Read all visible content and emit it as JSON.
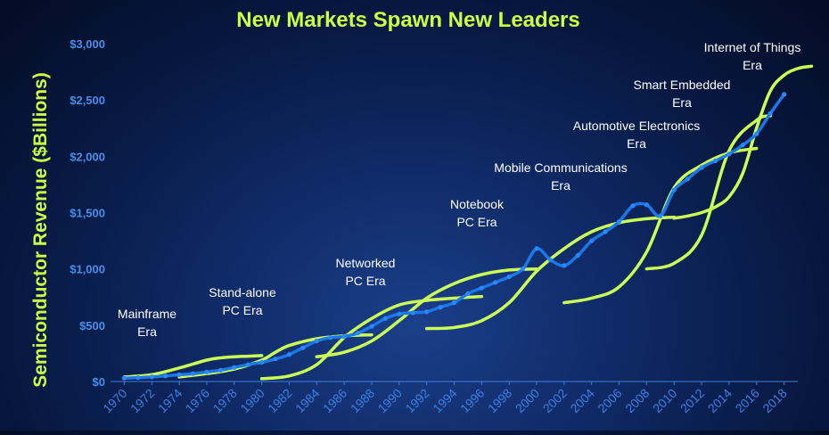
{
  "chart_data": {
    "type": "line",
    "title": "New Markets Spawn New Leaders",
    "ylabel": "Semiconductor Revenue ($Billions)",
    "xlabel": "",
    "xlim": [
      1969,
      2019
    ],
    "ylim": [
      0,
      3000
    ],
    "yticks": [
      {
        "value": 0,
        "label": "$0"
      },
      {
        "value": 500,
        "label": "$500"
      },
      {
        "value": 1000,
        "label": "$1,000"
      },
      {
        "value": 1500,
        "label": "$1,500"
      },
      {
        "value": 2000,
        "label": "$2,000"
      },
      {
        "value": 2500,
        "label": "$2,500"
      },
      {
        "value": 3000,
        "label": "$3,000"
      }
    ],
    "xticks": [
      "1970",
      "1972",
      "1974",
      "1976",
      "1978",
      "1980",
      "1982",
      "1984",
      "1986",
      "1988",
      "1990",
      "1992",
      "1994",
      "1996",
      "1998",
      "2000",
      "2002",
      "2004",
      "2006",
      "2008",
      "2010",
      "2012",
      "2014",
      "2016",
      "2018"
    ],
    "colors": {
      "revenue": "#1a78e8",
      "era_curves": "#ccff55",
      "title": "#ccff44"
    },
    "series": [
      {
        "type": "line",
        "x": [
          1970,
          1971,
          1972,
          1973,
          1974,
          1975,
          1976,
          1977,
          1978,
          1979,
          1980,
          1981,
          1982,
          1983,
          1984,
          1985,
          1986,
          1987,
          1988,
          1989,
          1990,
          1991,
          1992,
          1993,
          1994,
          1995,
          1996,
          1997,
          1998,
          1999,
          2000,
          2001,
          2002,
          2003,
          2004,
          2005,
          2006,
          2007,
          2008,
          2009,
          2010,
          2011,
          2012,
          2013,
          2014,
          2015,
          2016,
          2017,
          2018
        ],
        "values": [
          30,
          35,
          40,
          50,
          60,
          70,
          85,
          100,
          125,
          150,
          170,
          200,
          240,
          300,
          360,
          390,
          400,
          430,
          490,
          560,
          600,
          610,
          620,
          660,
          700,
          780,
          830,
          880,
          930,
          1000,
          1180,
          1080,
          1030,
          1120,
          1250,
          1330,
          1420,
          1560,
          1570,
          1470,
          1700,
          1800,
          1900,
          1960,
          2020,
          2100,
          2200,
          2380,
          2550
        ]
      }
    ],
    "eras": [
      {
        "label": [
          "Mainframe",
          "Era"
        ],
        "x": [
          1970,
          1972,
          1974,
          1976,
          1977,
          1978,
          1979,
          1980
        ],
        "values": [
          40,
          60,
          120,
          190,
          210,
          220,
          225,
          230
        ]
      },
      {
        "label": [
          "Stand-alone",
          "PC Era"
        ],
        "x": [
          1974,
          1976,
          1978,
          1980,
          1981,
          1982,
          1984,
          1986,
          1988
        ],
        "values": [
          40,
          70,
          110,
          190,
          260,
          320,
          380,
          405,
          415
        ]
      },
      {
        "label": [
          "Networked",
          "PC Era"
        ],
        "x": [
          1980,
          1982,
          1984,
          1986,
          1988,
          1990,
          1992,
          1994,
          1996
        ],
        "values": [
          25,
          50,
          150,
          390,
          560,
          680,
          720,
          740,
          755
        ]
      },
      {
        "label": [
          "Notebook",
          "PC Era"
        ],
        "x": [
          1984,
          1986,
          1988,
          1990,
          1992,
          1994,
          1996,
          1998,
          2000
        ],
        "values": [
          220,
          260,
          360,
          540,
          740,
          870,
          950,
          990,
          1000
        ]
      },
      {
        "label": [
          "Mobile Communications",
          "Era"
        ],
        "x": [
          1992,
          1994,
          1996,
          1998,
          2000,
          2002,
          2004,
          2006,
          2008,
          2010
        ],
        "values": [
          470,
          480,
          540,
          700,
          980,
          1180,
          1330,
          1410,
          1445,
          1460
        ]
      },
      {
        "label": [
          "Automotive Electronics",
          "Era"
        ],
        "x": [
          2002,
          2004,
          2006,
          2008,
          2010,
          2012,
          2014,
          2016
        ],
        "values": [
          700,
          740,
          840,
          1150,
          1720,
          1920,
          2030,
          2070
        ]
      },
      {
        "label": [
          "Smart Embedded",
          "Era"
        ],
        "x": [
          2008,
          2010,
          2012,
          2014,
          2016,
          2017
        ],
        "values": [
          1000,
          1050,
          1300,
          2050,
          2320,
          2360
        ]
      },
      {
        "label": [
          "Internet of Things",
          "Era"
        ],
        "x": [
          2010,
          2011,
          2012,
          2013,
          2014,
          2015,
          2016,
          2017,
          2018,
          2019,
          2020
        ],
        "values": [
          1450,
          1470,
          1500,
          1550,
          1640,
          1850,
          2250,
          2580,
          2720,
          2780,
          2800
        ]
      }
    ]
  }
}
